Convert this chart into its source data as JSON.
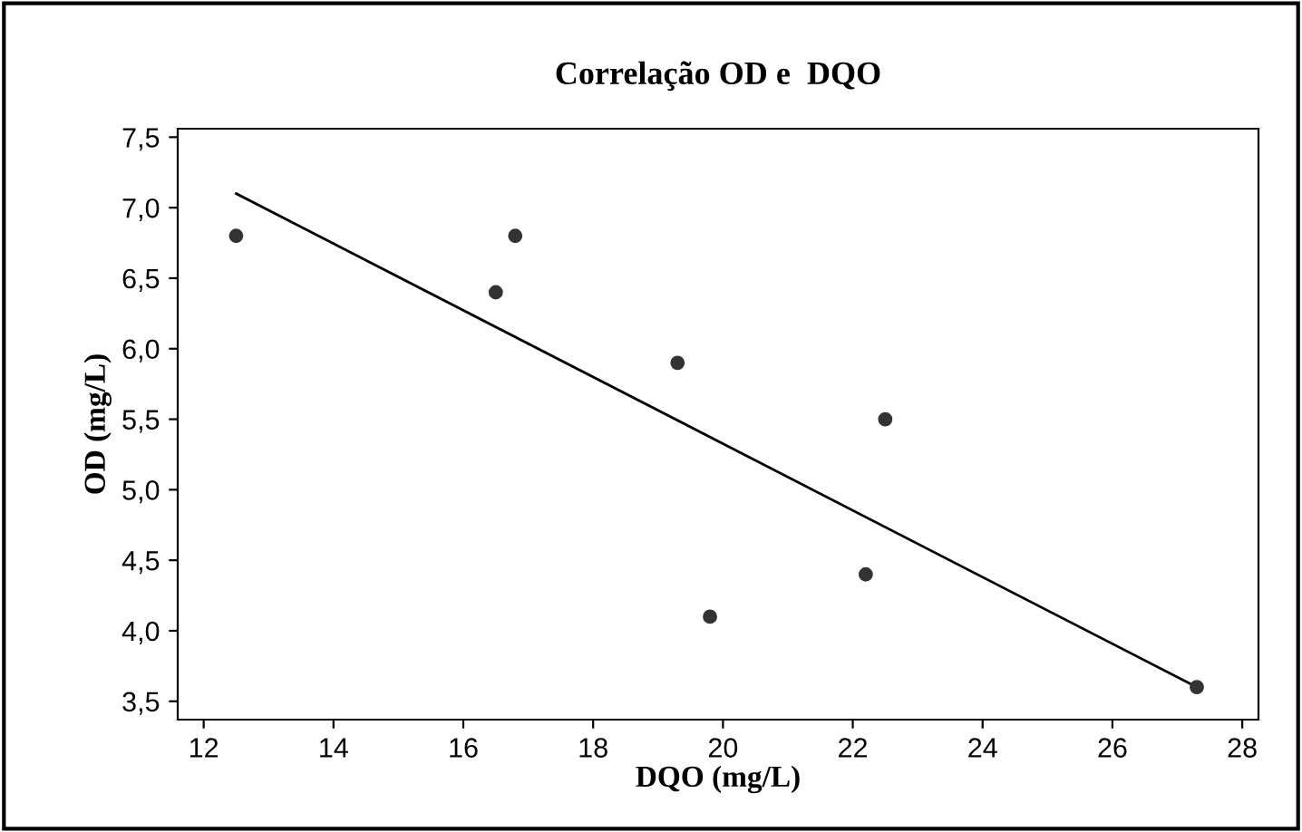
{
  "chart_data": {
    "type": "scatter",
    "title": "Correlação OD e  DQO",
    "xlabel": "DQO (mg/L)",
    "ylabel": "OD (mg/L)",
    "series": [
      {
        "type": "scatter",
        "color": "#333333",
        "x": [
          12.5,
          16.5,
          16.8,
          19.3,
          19.8,
          22.2,
          22.5,
          27.3
        ],
        "values": [
          6.8,
          6.4,
          6.8,
          5.9,
          4.1,
          4.4,
          5.5,
          3.6
        ]
      },
      {
        "type": "line",
        "color": "#000000",
        "x": [
          12.5,
          27.3
        ],
        "values": [
          7.1,
          3.6
        ]
      }
    ],
    "xlim": [
      11.6,
      28.25
    ],
    "xticks": [
      12,
      14,
      16,
      18,
      20,
      22,
      24,
      26,
      28
    ],
    "ylim": [
      3.37,
      7.56
    ],
    "yticks": [
      {
        "value": 3.5,
        "label": "3,5"
      },
      {
        "value": 4.0,
        "label": "4,0"
      },
      {
        "value": 4.5,
        "label": "4,5"
      },
      {
        "value": 5.0,
        "label": "5,0"
      },
      {
        "value": 5.5,
        "label": "5,5"
      },
      {
        "value": 6.0,
        "label": "6,0"
      },
      {
        "value": 6.5,
        "label": "6,5"
      },
      {
        "value": 7.0,
        "label": "7,0"
      },
      {
        "value": 7.5,
        "label": "7,5"
      }
    ],
    "grid": false,
    "legend": false
  }
}
